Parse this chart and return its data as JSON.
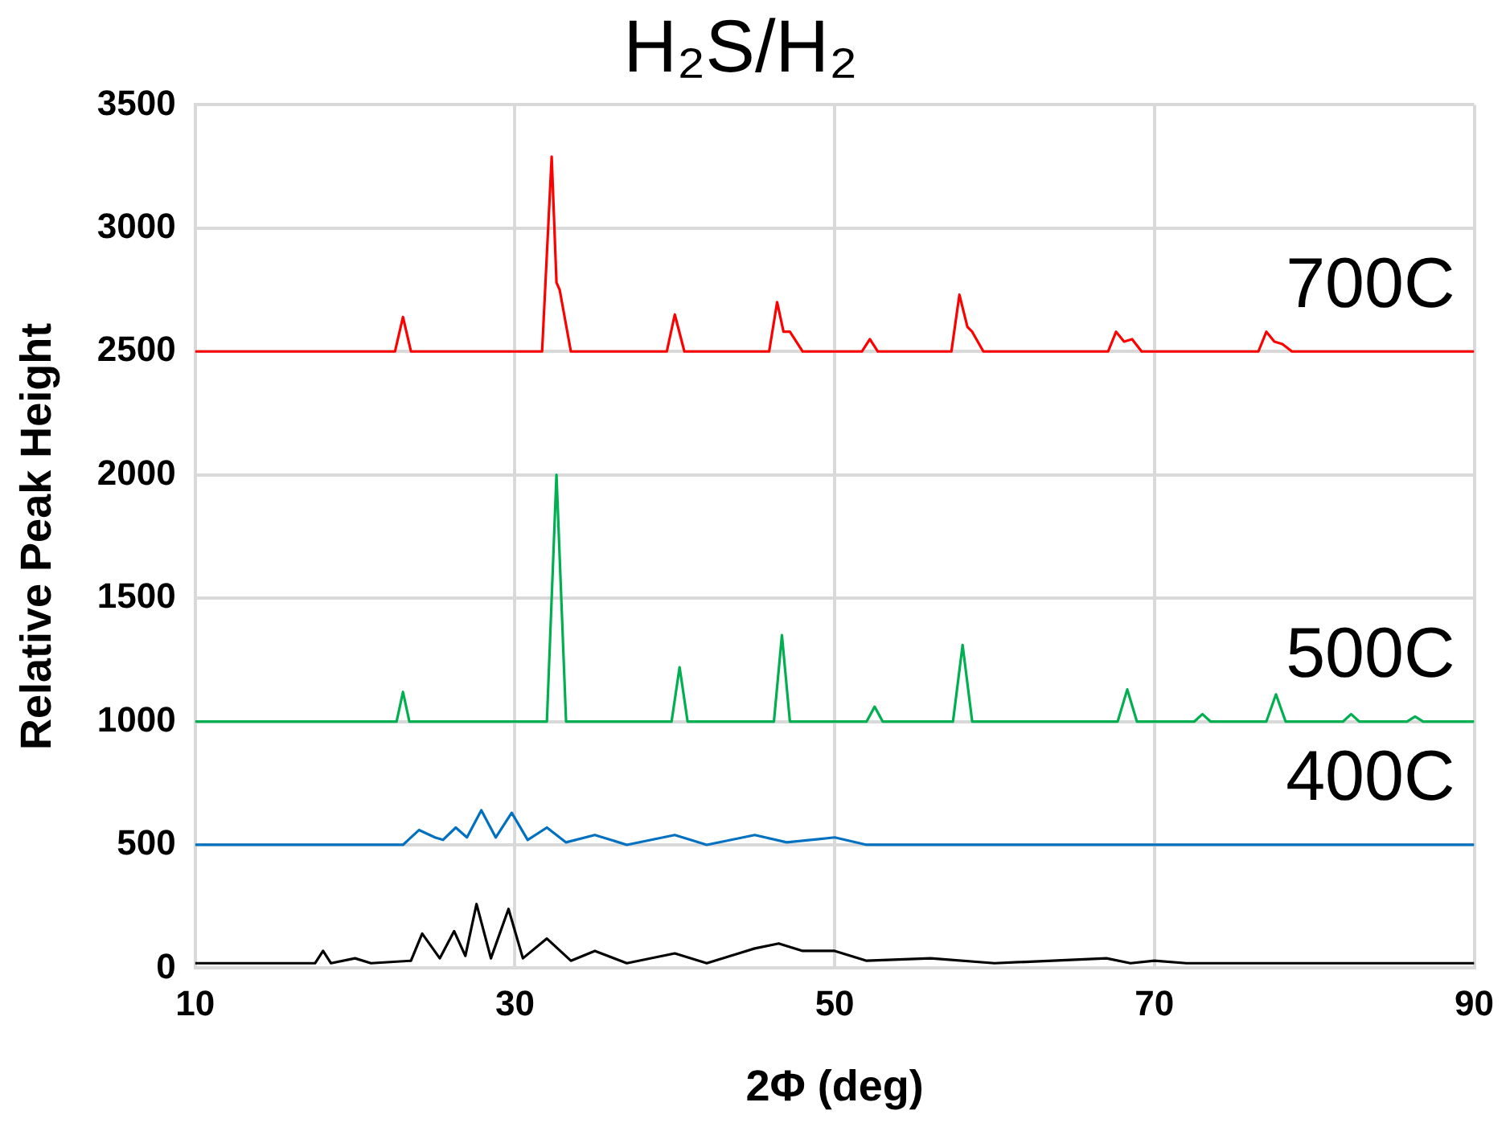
{
  "chart_data": {
    "type": "line",
    "title": "H₂S/H₂",
    "xlabel": "2Φ (deg)",
    "ylabel": "Relative Peak Height",
    "xlim": [
      10,
      90
    ],
    "xticks": [
      10,
      30,
      50,
      70,
      90
    ],
    "ylim": [
      0,
      3500
    ],
    "yticks": [
      0,
      500,
      1000,
      1500,
      2000,
      2500,
      3000,
      3500
    ],
    "grid": true,
    "legend": false,
    "marker": "none",
    "line_style": "solid",
    "series": [
      {
        "name": "700C",
        "color": "#ff0000",
        "x": [
          10,
          22.5,
          23,
          23.5,
          31.7,
          32.3,
          32.6,
          32.8,
          33.5,
          39.5,
          40,
          40.6,
          45.9,
          46.4,
          46.8,
          47.2,
          48,
          51.7,
          52.2,
          52.7,
          57.3,
          57.8,
          58.3,
          58.6,
          59.3,
          67.1,
          67.6,
          68.1,
          68.6,
          69.2,
          76.5,
          77,
          77.5,
          78,
          78.6,
          90
        ],
        "values": [
          2500,
          2500,
          2640,
          2500,
          2500,
          3290,
          2780,
          2750,
          2500,
          2500,
          2650,
          2500,
          2500,
          2700,
          2580,
          2580,
          2500,
          2500,
          2550,
          2500,
          2500,
          2730,
          2600,
          2580,
          2500,
          2500,
          2580,
          2540,
          2550,
          2500,
          2500,
          2580,
          2540,
          2530,
          2500,
          2500
        ]
      },
      {
        "name": "500C",
        "color": "#00b050",
        "x": [
          10,
          22.6,
          23,
          23.4,
          32,
          32.6,
          33.2,
          39.8,
          40.3,
          40.8,
          46.2,
          46.7,
          47.2,
          52,
          52.5,
          53,
          57.4,
          58,
          58.6,
          67.7,
          68.3,
          68.9,
          72.5,
          73,
          73.5,
          77,
          77.6,
          78.2,
          81.8,
          82.3,
          82.8,
          85.8,
          86.3,
          86.8,
          90
        ],
        "values": [
          1000,
          1000,
          1120,
          1000,
          1000,
          2000,
          1000,
          1000,
          1220,
          1000,
          1000,
          1350,
          1000,
          1000,
          1060,
          1000,
          1000,
          1310,
          1000,
          1000,
          1130,
          1000,
          1000,
          1030,
          1000,
          1000,
          1110,
          1000,
          1000,
          1030,
          1000,
          1000,
          1020,
          1000,
          1000
        ]
      },
      {
        "name": "400C",
        "color": "#0070c0",
        "x": [
          10,
          23,
          24,
          25,
          25.5,
          26.3,
          27,
          27.9,
          28.8,
          29.8,
          30.8,
          32,
          33.2,
          35,
          37,
          40,
          42,
          45,
          47,
          50,
          52,
          90
        ],
        "values": [
          500,
          500,
          560,
          530,
          520,
          570,
          530,
          640,
          530,
          630,
          520,
          570,
          510,
          540,
          500,
          540,
          500,
          540,
          510,
          530,
          500,
          500
        ]
      },
      {
        "color": "#000000",
        "x": [
          10,
          17.5,
          18,
          18.5,
          20,
          21,
          23.5,
          24.2,
          25.3,
          26.2,
          26.9,
          27.6,
          28.5,
          29.6,
          30.5,
          32,
          33.5,
          35,
          37,
          40,
          42,
          44,
          45,
          46.5,
          48,
          50,
          52,
          56,
          60,
          67,
          68.5,
          70,
          72,
          90
        ],
        "values": [
          20,
          20,
          70,
          20,
          40,
          20,
          30,
          140,
          40,
          150,
          50,
          260,
          40,
          240,
          40,
          120,
          30,
          70,
          20,
          60,
          20,
          60,
          80,
          100,
          70,
          70,
          30,
          40,
          20,
          40,
          20,
          30,
          20,
          20
        ]
      }
    ]
  }
}
